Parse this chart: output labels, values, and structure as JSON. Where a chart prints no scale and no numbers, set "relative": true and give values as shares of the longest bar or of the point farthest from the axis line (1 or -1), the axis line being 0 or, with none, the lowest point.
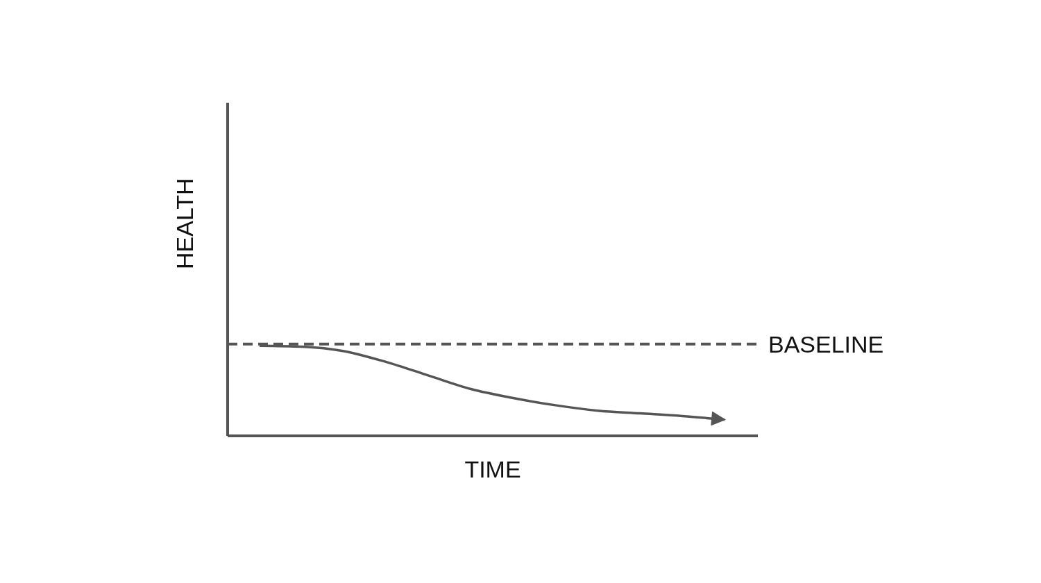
{
  "chart_data": {
    "type": "line",
    "relative": true,
    "xlabel": "TIME",
    "ylabel": "HEALTH",
    "tick_labels": false,
    "marker": "none",
    "line_style": "solid",
    "categories": [
      null,
      null,
      null,
      null,
      null,
      null,
      null,
      null,
      null,
      null,
      null,
      null
    ],
    "series": [
      {
        "color": "#555555",
        "values": [
          1.0,
          0.99,
          0.94,
          0.82,
          0.67,
          0.52,
          0.42,
          0.34,
          0.28,
          0.25,
          0.22,
          0.18
        ]
      }
    ],
    "ref_lines": [
      {
        "axis": "y",
        "value": 1.02,
        "label": "BASELINE",
        "line_style": "dashed",
        "color": "#555555"
      }
    ]
  }
}
